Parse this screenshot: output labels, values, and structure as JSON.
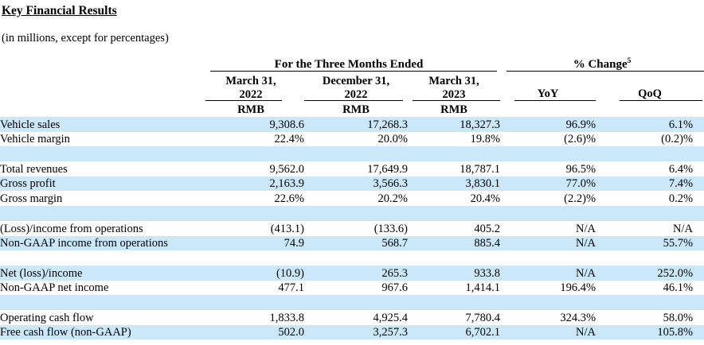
{
  "title": "Key Financial Results",
  "subtitle": "(in millions, except for percentages)",
  "colors": {
    "row_highlight": "#cbe8fa",
    "text": "#000000",
    "rule": "#000000"
  },
  "table": {
    "group_headers": {
      "three_months": "For the Three Months Ended",
      "pct_change": "% Change",
      "pct_change_footnote": "5"
    },
    "period_headers": [
      {
        "line1": "March 31,",
        "line2": "2022"
      },
      {
        "line1": "December 31,",
        "line2": "2022"
      },
      {
        "line1": "March 31,",
        "line2": "2023"
      }
    ],
    "change_headers": [
      "YoY",
      "QoQ"
    ],
    "currency_labels": [
      "RMB",
      "RMB",
      "RMB"
    ],
    "rows": [
      {
        "label": "Vehicle sales",
        "values": [
          "9,308.6",
          "17,268.3",
          "18,327.3",
          "96.9%",
          "6.1%"
        ],
        "highlight": true,
        "blank": false
      },
      {
        "label": "Vehicle margin",
        "values": [
          "22.4%",
          "20.0%",
          "19.8%",
          "(2.6)%",
          "(0.2)%"
        ],
        "highlight": false,
        "blank": false
      },
      {
        "label": "",
        "values": [
          "",
          "",
          "",
          "",
          ""
        ],
        "highlight": true,
        "blank": true
      },
      {
        "label": "Total revenues",
        "values": [
          "9,562.0",
          "17,649.9",
          "18,787.1",
          "96.5%",
          "6.4%"
        ],
        "highlight": false,
        "blank": false
      },
      {
        "label": "Gross profit",
        "values": [
          "2,163.9",
          "3,566.3",
          "3,830.1",
          "77.0%",
          "7.4%"
        ],
        "highlight": true,
        "blank": false
      },
      {
        "label": "Gross margin",
        "values": [
          "22.6%",
          "20.2%",
          "20.4%",
          "(2.2)%",
          "0.2%"
        ],
        "highlight": false,
        "blank": false
      },
      {
        "label": "",
        "values": [
          "",
          "",
          "",
          "",
          ""
        ],
        "highlight": true,
        "blank": true
      },
      {
        "label": "(Loss)/income from operations",
        "values": [
          "(413.1)",
          "(133.6)",
          "405.2",
          "N/A",
          "N/A"
        ],
        "highlight": false,
        "blank": false
      },
      {
        "label": "Non-GAAP income from operations",
        "values": [
          "74.9",
          "568.7",
          "885.4",
          "N/A",
          "55.7%"
        ],
        "highlight": true,
        "blank": false
      },
      {
        "label": "",
        "values": [
          "",
          "",
          "",
          "",
          ""
        ],
        "highlight": false,
        "blank": true
      },
      {
        "label": "Net (loss)/income",
        "values": [
          "(10.9)",
          "265.3",
          "933.8",
          "N/A",
          "252.0%"
        ],
        "highlight": true,
        "blank": false
      },
      {
        "label": "Non-GAAP net income",
        "values": [
          "477.1",
          "967.6",
          "1,414.1",
          "196.4%",
          "46.1%"
        ],
        "highlight": false,
        "blank": false
      },
      {
        "label": "",
        "values": [
          "",
          "",
          "",
          "",
          ""
        ],
        "highlight": true,
        "blank": true
      },
      {
        "label": "Operating cash flow",
        "values": [
          "1,833.8",
          "4,925.4",
          "7,780.4",
          "324.3%",
          "58.0%"
        ],
        "highlight": false,
        "blank": false
      },
      {
        "label": "Free cash flow (non-GAAP)",
        "values": [
          "502.0",
          "3,257.3",
          "6,702.1",
          "N/A",
          "105.8%"
        ],
        "highlight": true,
        "blank": false
      }
    ]
  }
}
